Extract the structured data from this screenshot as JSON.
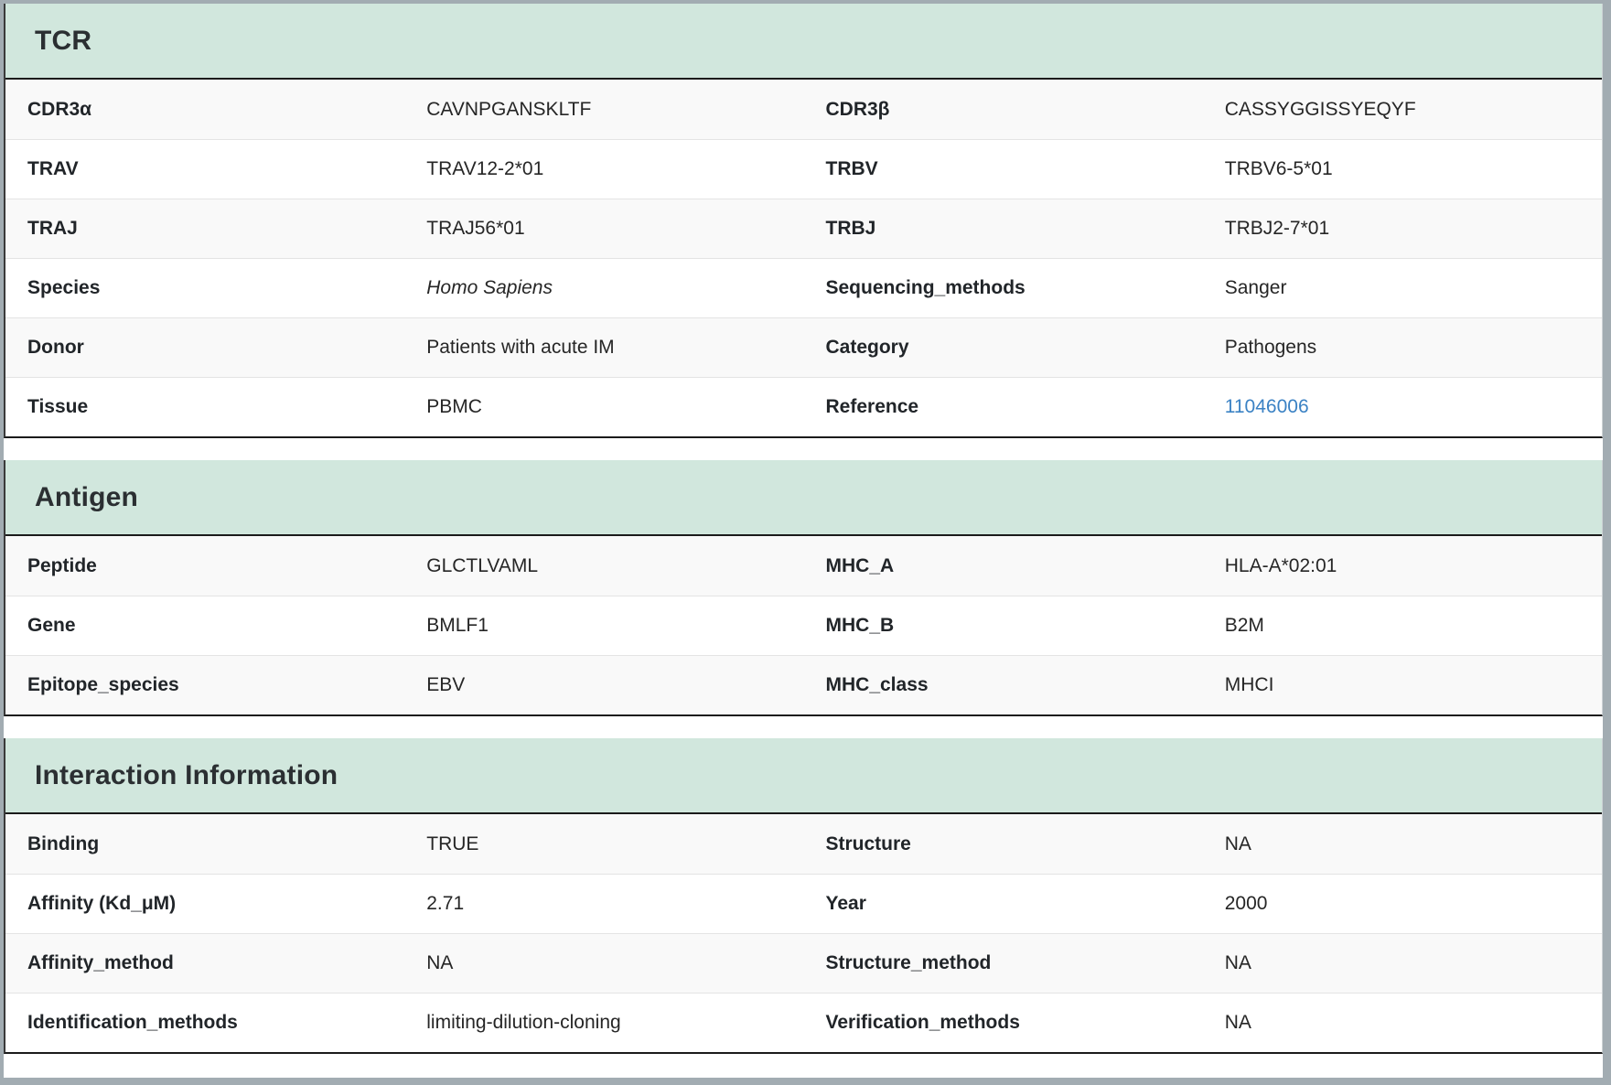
{
  "colors": {
    "section_header_bg": "#d1e7dd",
    "stripe_row_bg": "#f9f9f9",
    "plain_row_bg": "#ffffff",
    "dark_rule": "#1b1b1b",
    "row_divider": "#e4e4e4",
    "page_frame": "#a2acb2",
    "label_text": "#212529",
    "value_text": "#262626",
    "link": "#3b82c4"
  },
  "sections": [
    {
      "title": "TCR",
      "rows": [
        {
          "cells": [
            {
              "label": "CDR3α",
              "value": "CAVNPGANSKLTF"
            },
            {
              "label": "CDR3β",
              "value": "CASSYGGISSYEQYF"
            }
          ]
        },
        {
          "cells": [
            {
              "label": "TRAV",
              "value": "TRAV12-2*01"
            },
            {
              "label": "TRBV",
              "value": "TRBV6-5*01"
            }
          ]
        },
        {
          "cells": [
            {
              "label": "TRAJ",
              "value": "TRAJ56*01"
            },
            {
              "label": "TRBJ",
              "value": "TRBJ2-7*01"
            }
          ]
        },
        {
          "cells": [
            {
              "label": "Species",
              "value": "Homo Sapiens"
            },
            {
              "label": "Sequencing_methods",
              "value": "Sanger"
            }
          ]
        },
        {
          "cells": [
            {
              "label": "Donor",
              "value": "Patients with acute IM"
            },
            {
              "label": "Category",
              "value": "Pathogens"
            }
          ]
        },
        {
          "cells": [
            {
              "label": "Tissue",
              "value": "PBMC"
            },
            {
              "label": "Reference",
              "value": "11046006"
            }
          ]
        }
      ]
    },
    {
      "title": "Antigen",
      "rows": [
        {
          "cells": [
            {
              "label": "Peptide",
              "value": "GLCTLVAML"
            },
            {
              "label": "MHC_A",
              "value": "HLA-A*02:01"
            }
          ]
        },
        {
          "cells": [
            {
              "label": "Gene",
              "value": "BMLF1"
            },
            {
              "label": "MHC_B",
              "value": "B2M"
            }
          ]
        },
        {
          "cells": [
            {
              "label": "Epitope_species",
              "value": "EBV"
            },
            {
              "label": "MHC_class",
              "value": "MHCI"
            }
          ]
        }
      ]
    },
    {
      "title": "Interaction Information",
      "rows": [
        {
          "cells": [
            {
              "label": "Binding",
              "value": "TRUE"
            },
            {
              "label": "Structure",
              "value": "NA"
            }
          ]
        },
        {
          "cells": [
            {
              "label": "Affinity (Kd_μM)",
              "value": "2.71"
            },
            {
              "label": "Year",
              "value": "2000"
            }
          ]
        },
        {
          "cells": [
            {
              "label": "Affinity_method",
              "value": "NA"
            },
            {
              "label": "Structure_method",
              "value": "NA"
            }
          ]
        },
        {
          "cells": [
            {
              "label": "Identification_methods",
              "value": "limiting-dilution-cloning"
            },
            {
              "label": "Verification_methods",
              "value": "NA"
            }
          ]
        }
      ]
    }
  ]
}
